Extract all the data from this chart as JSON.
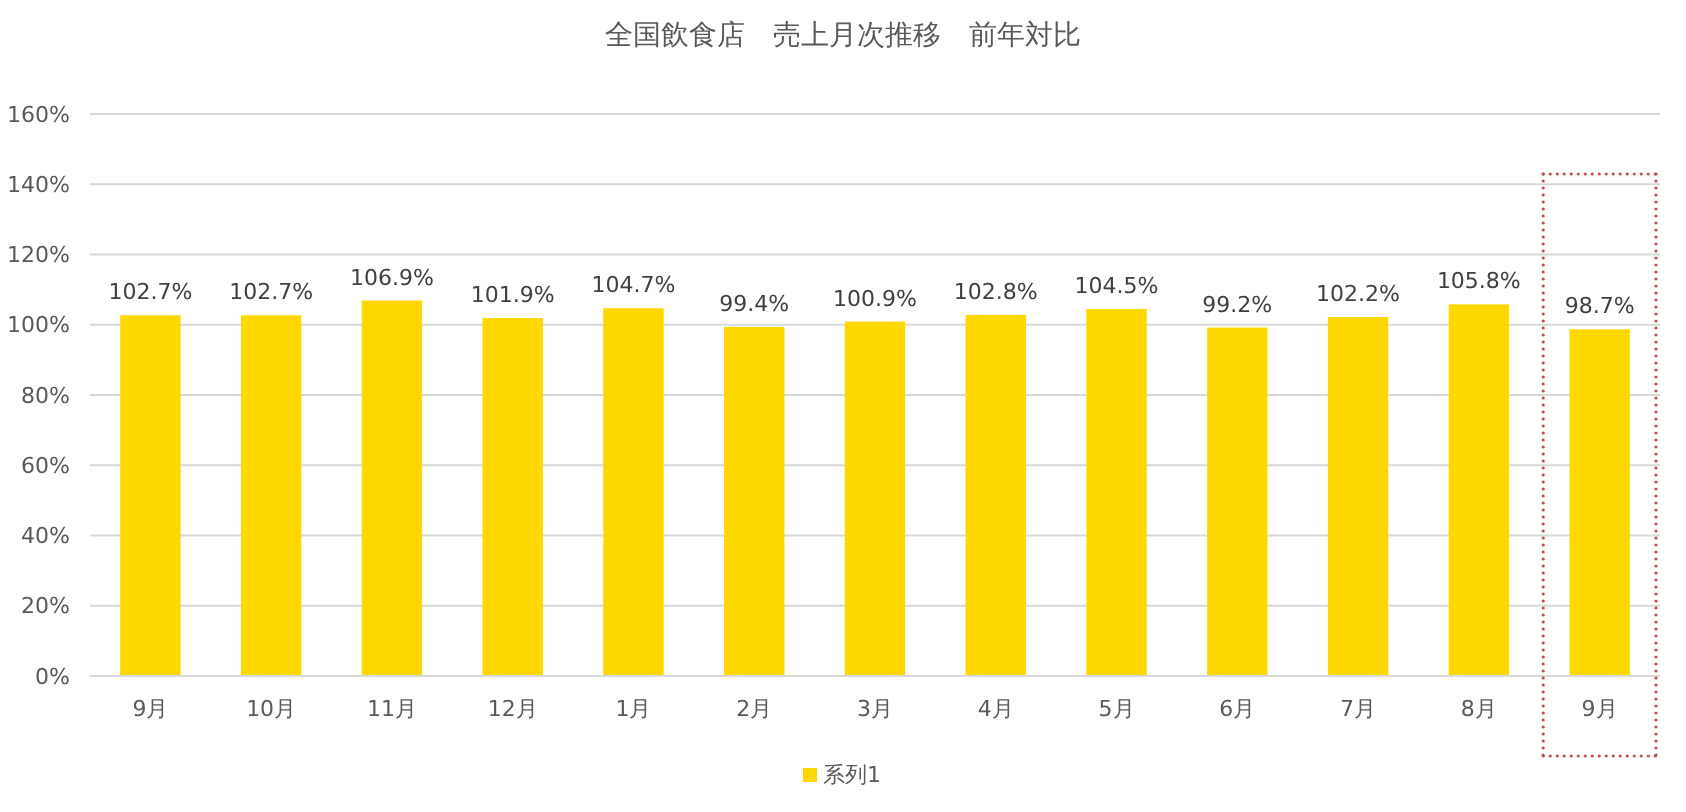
{
  "chart_data": {
    "type": "bar",
    "title": "全国飲食店　売上月次推移　前年対比",
    "categories": [
      "9月",
      "10月",
      "11月",
      "12月",
      "1月",
      "2月",
      "3月",
      "4月",
      "5月",
      "6月",
      "7月",
      "8月",
      "9月"
    ],
    "series": [
      {
        "name": "系列1",
        "color": "#ffd800",
        "values": [
          102.7,
          102.7,
          106.9,
          101.9,
          104.7,
          99.4,
          100.9,
          102.8,
          104.5,
          99.2,
          102.2,
          105.8,
          98.7
        ],
        "value_labels": [
          "102.7%",
          "102.7%",
          "106.9%",
          "101.9%",
          "104.7%",
          "99.4%",
          "100.9%",
          "102.8%",
          "104.5%",
          "99.2%",
          "102.2%",
          "105.8%",
          "98.7%"
        ]
      }
    ],
    "ylim": [
      0,
      160
    ],
    "yticks": [
      {
        "value": 0,
        "label": "0%"
      },
      {
        "value": 20,
        "label": "20%"
      },
      {
        "value": 40,
        "label": "40%"
      },
      {
        "value": 60,
        "label": "60%"
      },
      {
        "value": 80,
        "label": "80%"
      },
      {
        "value": 100,
        "label": "100%"
      },
      {
        "value": 120,
        "label": "120%"
      },
      {
        "value": 140,
        "label": "140%"
      },
      {
        "value": 160,
        "label": "160%"
      }
    ],
    "grid": "y",
    "legend": "bottom"
  }
}
